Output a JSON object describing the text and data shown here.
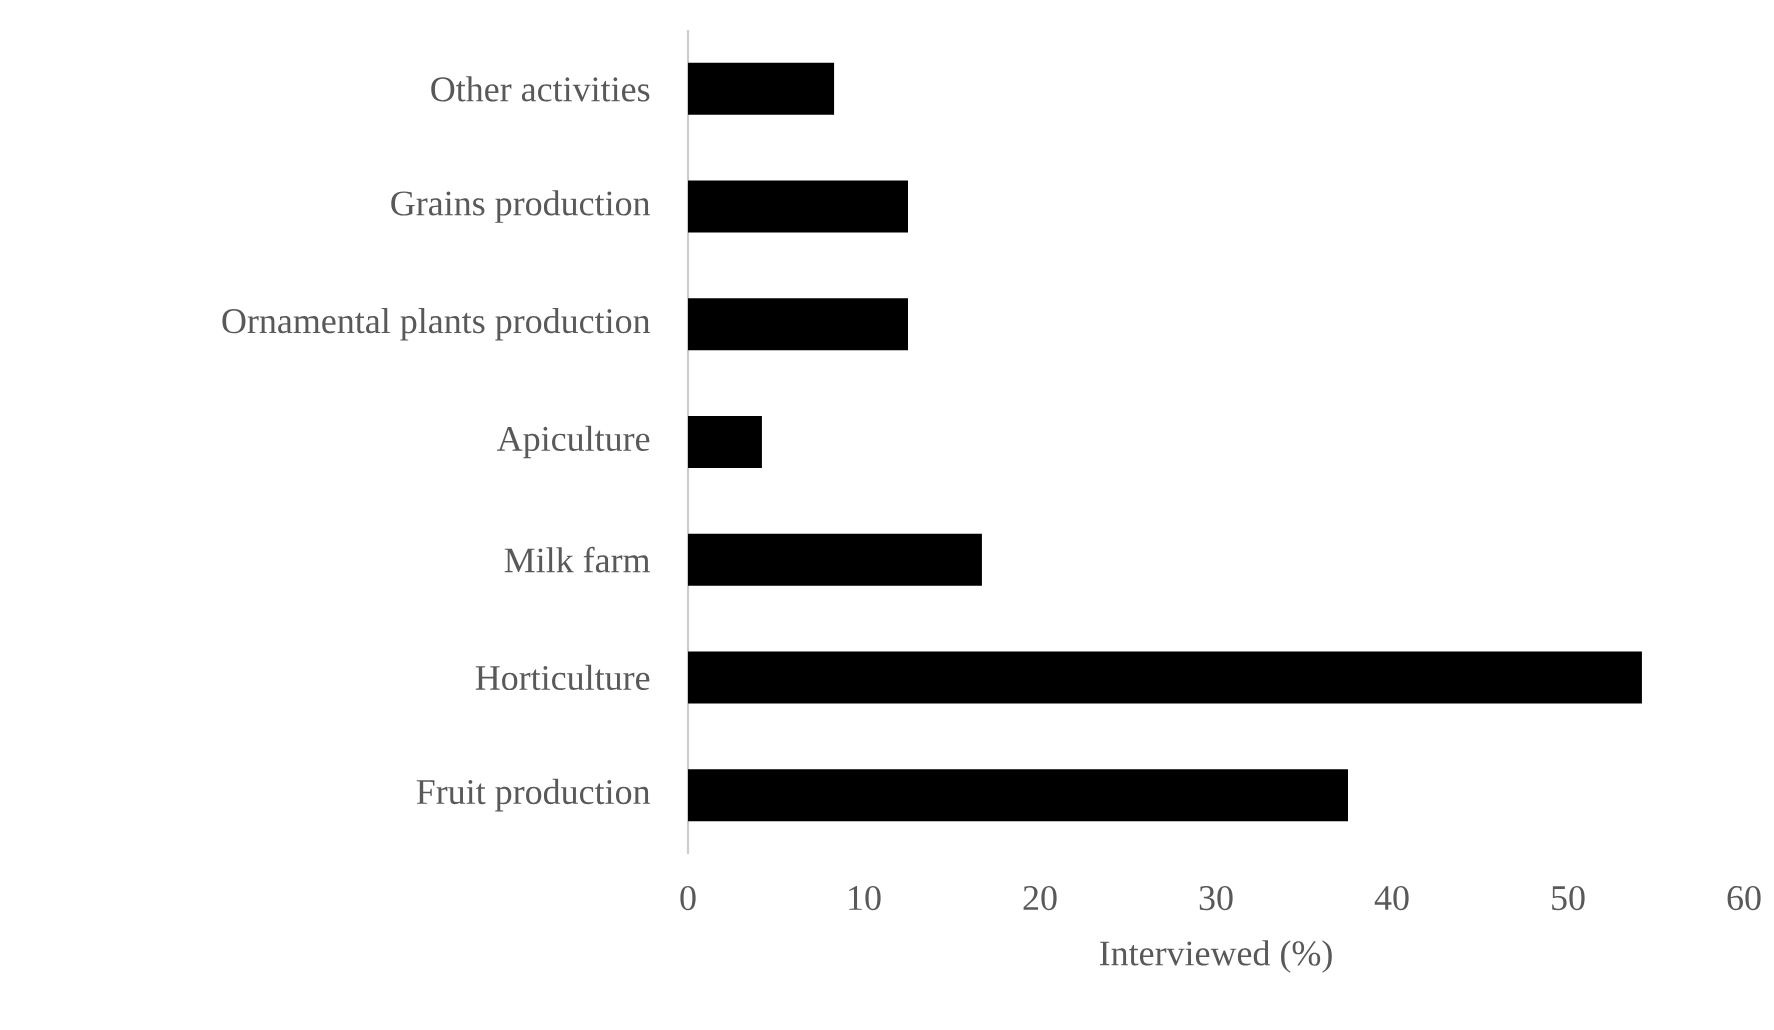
{
  "chart_data": {
    "type": "bar",
    "orientation": "horizontal",
    "xlabel": "Interviewed (%)",
    "categories": [
      "Other activities",
      "Grains production",
      "Ornamental plants production",
      "Apiculture",
      "Milk farm",
      "Horticulture",
      "Fruit production"
    ],
    "values": [
      8.3,
      12.5,
      12.5,
      4.2,
      16.7,
      54.2,
      37.5
    ],
    "color": "#000000",
    "xlim": [
      0,
      60
    ],
    "xticks": [
      0,
      10,
      20,
      30,
      40,
      50,
      60
    ],
    "grid": false
  }
}
